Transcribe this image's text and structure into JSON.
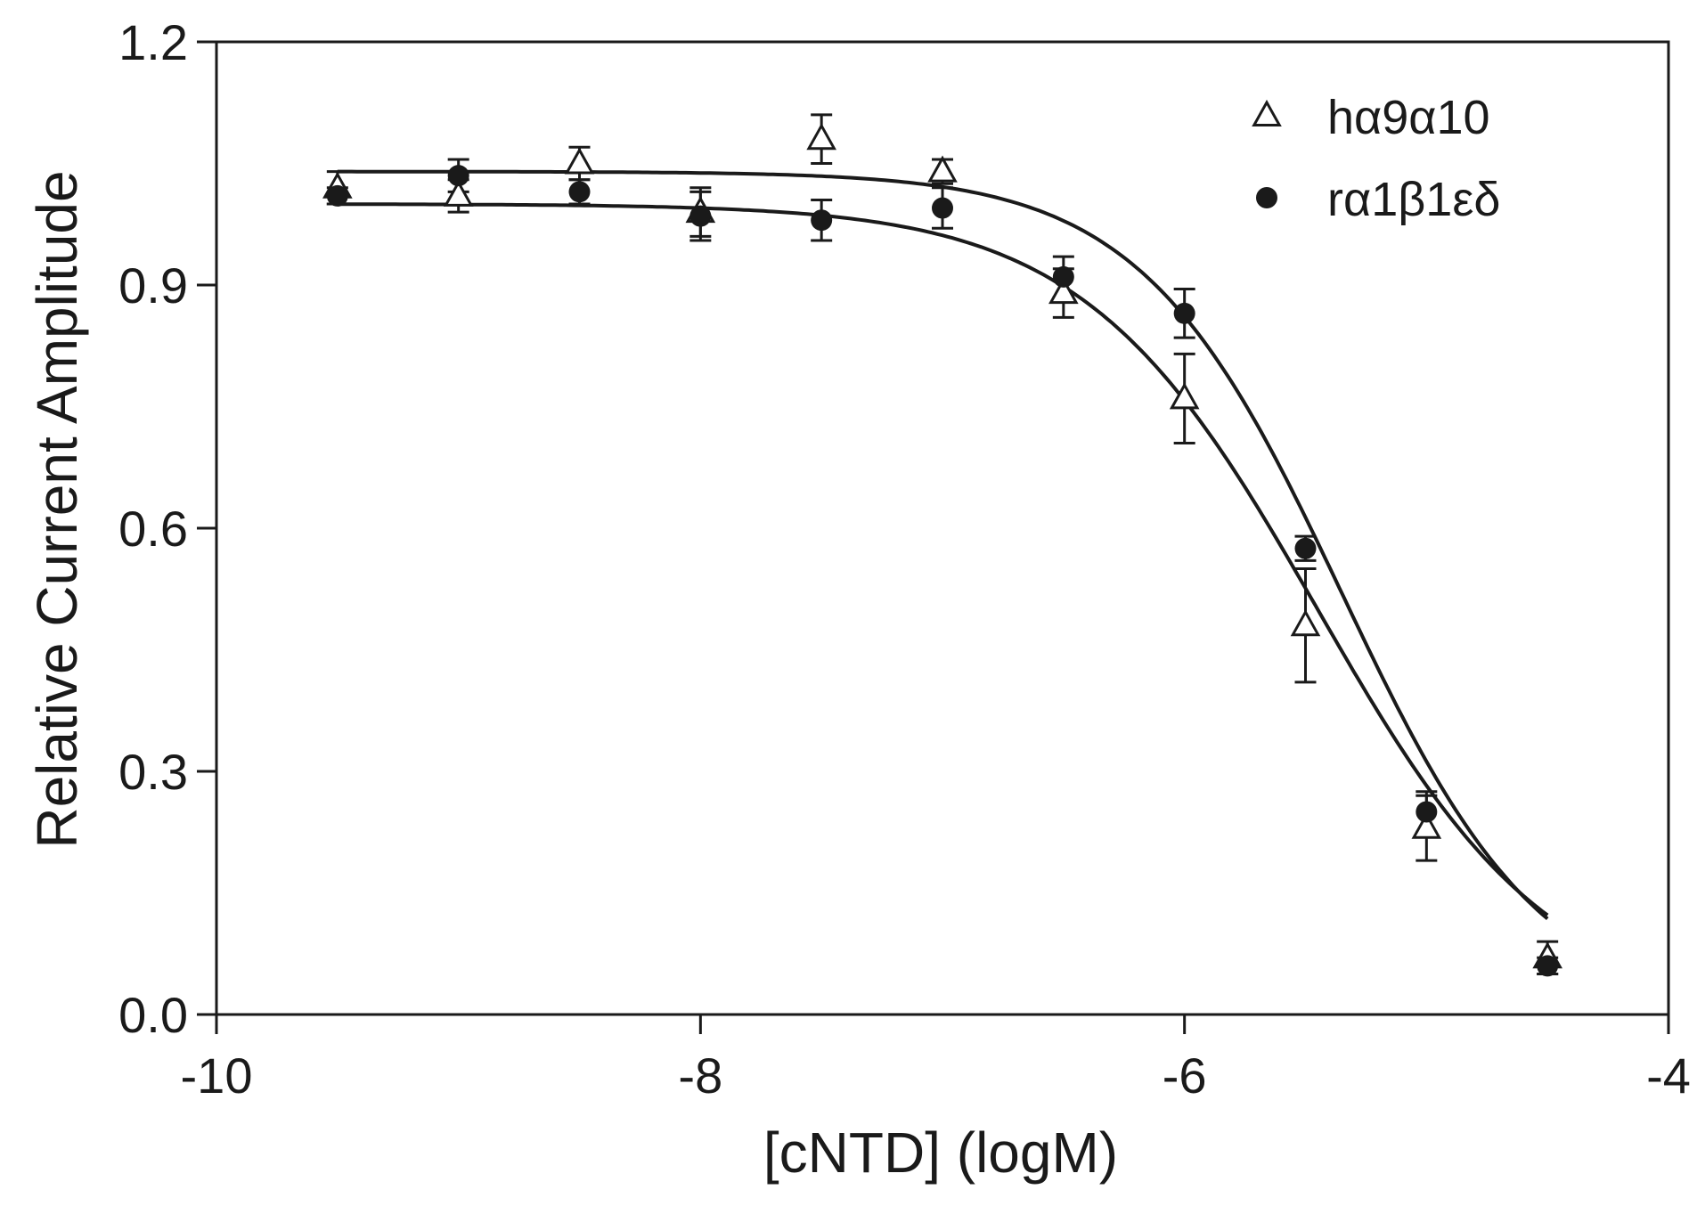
{
  "chart_data": {
    "type": "scatter",
    "title": "",
    "xlabel": "[cNTD] (logM)",
    "ylabel": "Relative Current Amplitude",
    "xlim": [
      -10,
      -4
    ],
    "ylim": [
      0.0,
      1.2
    ],
    "xticks": [
      -10,
      -8,
      -6,
      -4
    ],
    "xtick_labels": [
      "-10",
      "-8",
      "-6",
      "-4"
    ],
    "yticks": [
      0.0,
      0.3,
      0.6,
      0.9,
      1.2
    ],
    "ytick_labels": [
      "0.0",
      "0.3",
      "0.6",
      "0.9",
      "1.2"
    ],
    "grid": false,
    "legend_position": "top-right",
    "series": [
      {
        "name": "hα9α10",
        "marker": "open-triangle",
        "x": [
          -9.5,
          -9.0,
          -8.5,
          -8.0,
          -7.5,
          -7.0,
          -6.5,
          -6.0,
          -5.5,
          -5.0,
          -4.5
        ],
        "y": [
          1.02,
          1.01,
          1.05,
          0.99,
          1.08,
          1.04,
          0.89,
          0.76,
          0.48,
          0.23,
          0.07
        ],
        "err": [
          0.02,
          0.02,
          0.02,
          0.03,
          0.03,
          0.015,
          0.03,
          0.055,
          0.07,
          0.04,
          0.02
        ],
        "fit": {
          "top": 1.0,
          "bottom": 0.0,
          "logIC50": -5.45,
          "hill": 0.9
        }
      },
      {
        "name": "rα1β1εδ",
        "marker": "filled-circle",
        "x": [
          -9.5,
          -9.0,
          -8.5,
          -8.0,
          -7.5,
          -7.0,
          -6.5,
          -6.0,
          -5.5,
          -5.0,
          -4.5
        ],
        "y": [
          1.01,
          1.035,
          1.015,
          0.985,
          0.98,
          0.995,
          0.91,
          0.865,
          0.575,
          0.25,
          0.06
        ],
        "err": [
          0.01,
          0.02,
          0.015,
          0.03,
          0.025,
          0.025,
          0.025,
          0.03,
          0.015,
          0.025,
          0.01
        ],
        "fit": {
          "top": 1.04,
          "bottom": 0.0,
          "logIC50": -5.35,
          "hill": 1.05
        }
      }
    ]
  }
}
